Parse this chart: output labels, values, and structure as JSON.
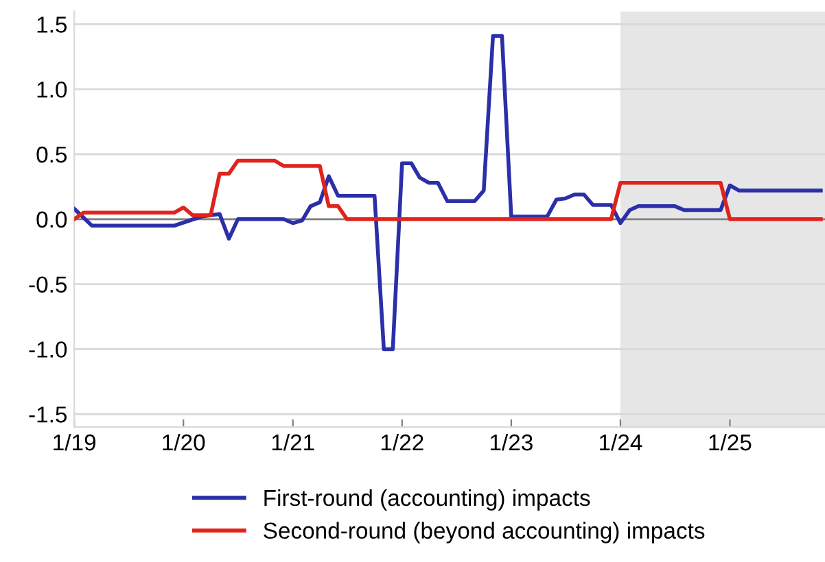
{
  "chart_data": {
    "type": "line",
    "xlim": [
      "2019-01-01",
      "2025-11-15"
    ],
    "ylim": [
      -1.6,
      1.6
    ],
    "xticks": [
      {
        "value": "2019-01-01",
        "label": "1/19"
      },
      {
        "value": "2020-01-01",
        "label": "1/20"
      },
      {
        "value": "2021-01-01",
        "label": "1/21"
      },
      {
        "value": "2022-01-01",
        "label": "1/22"
      },
      {
        "value": "2023-01-01",
        "label": "1/23"
      },
      {
        "value": "2024-01-01",
        "label": "1/24"
      },
      {
        "value": "2025-01-01",
        "label": "1/25"
      }
    ],
    "yticks": [
      {
        "value": -1.5,
        "label": "-1.5"
      },
      {
        "value": -1.0,
        "label": "-1.0"
      },
      {
        "value": -0.5,
        "label": "-0.5"
      },
      {
        "value": 0.0,
        "label": "0.0"
      },
      0.5,
      {
        "value": 1.0,
        "label": "1.0"
      },
      1.5
    ],
    "grid": "y",
    "legend": "bottom",
    "line_style": "solid",
    "marker": "none",
    "series": [
      {
        "name": "First-round (accounting) impacts",
        "color": "#2b2fa8",
        "x": [
          "2019-01",
          "2019-03",
          "2019-12",
          "2020-03",
          "2020-05",
          "2020-06",
          "2020-07",
          "2020-12",
          "2021-01",
          "2021-02",
          "2021-03",
          "2021-04",
          "2021-05",
          "2021-06",
          "2021-10",
          "2021-11",
          "2021-12",
          "2022-01",
          "2022-02",
          "2022-03",
          "2022-04",
          "2022-05",
          "2022-06",
          "2022-09",
          "2022-10",
          "2022-11",
          "2022-12",
          "2023-01",
          "2023-05",
          "2023-06",
          "2023-07",
          "2023-08",
          "2023-09",
          "2023-10",
          "2023-12",
          "2024-01",
          "2024-02",
          "2024-03",
          "2024-07",
          "2024-08",
          "2024-12",
          "2025-01",
          "2025-02",
          "2025-11"
        ],
        "values": [
          0.08,
          -0.05,
          -0.05,
          0.02,
          0.04,
          -0.15,
          0.0,
          0.0,
          -0.03,
          -0.01,
          0.1,
          0.13,
          0.33,
          0.18,
          0.18,
          -1.0,
          -1.0,
          0.43,
          0.43,
          0.32,
          0.28,
          0.28,
          0.14,
          0.14,
          0.22,
          1.41,
          1.41,
          0.02,
          0.02,
          0.15,
          0.16,
          0.19,
          0.19,
          0.11,
          0.11,
          -0.03,
          0.07,
          0.1,
          0.1,
          0.07,
          0.07,
          0.26,
          0.22,
          0.22
        ]
      },
      {
        "name": "Second-round (beyond accounting) impacts",
        "color": "#e0231c",
        "x": [
          "2019-01",
          "2019-02",
          "2019-12",
          "2020-01",
          "2020-02",
          "2020-04",
          "2020-05",
          "2020-06",
          "2020-07",
          "2020-11",
          "2020-12",
          "2021-04",
          "2021-05",
          "2021-06",
          "2021-07",
          "2023-12",
          "2024-01",
          "2024-12",
          "2025-01",
          "2025-11"
        ],
        "values": [
          0.0,
          0.05,
          0.05,
          0.09,
          0.03,
          0.03,
          0.35,
          0.35,
          0.45,
          0.45,
          0.41,
          0.41,
          0.1,
          0.1,
          0.0,
          0.0,
          0.28,
          0.28,
          0.0,
          0.0
        ]
      }
    ],
    "ref_lines": [
      {
        "axis": "y",
        "value": 0,
        "color": "#808080"
      }
    ],
    "bands": [
      {
        "axis": "x",
        "from": "2024-01-01",
        "to": "2025-11-15",
        "color": "#e6e6e6"
      }
    ]
  }
}
